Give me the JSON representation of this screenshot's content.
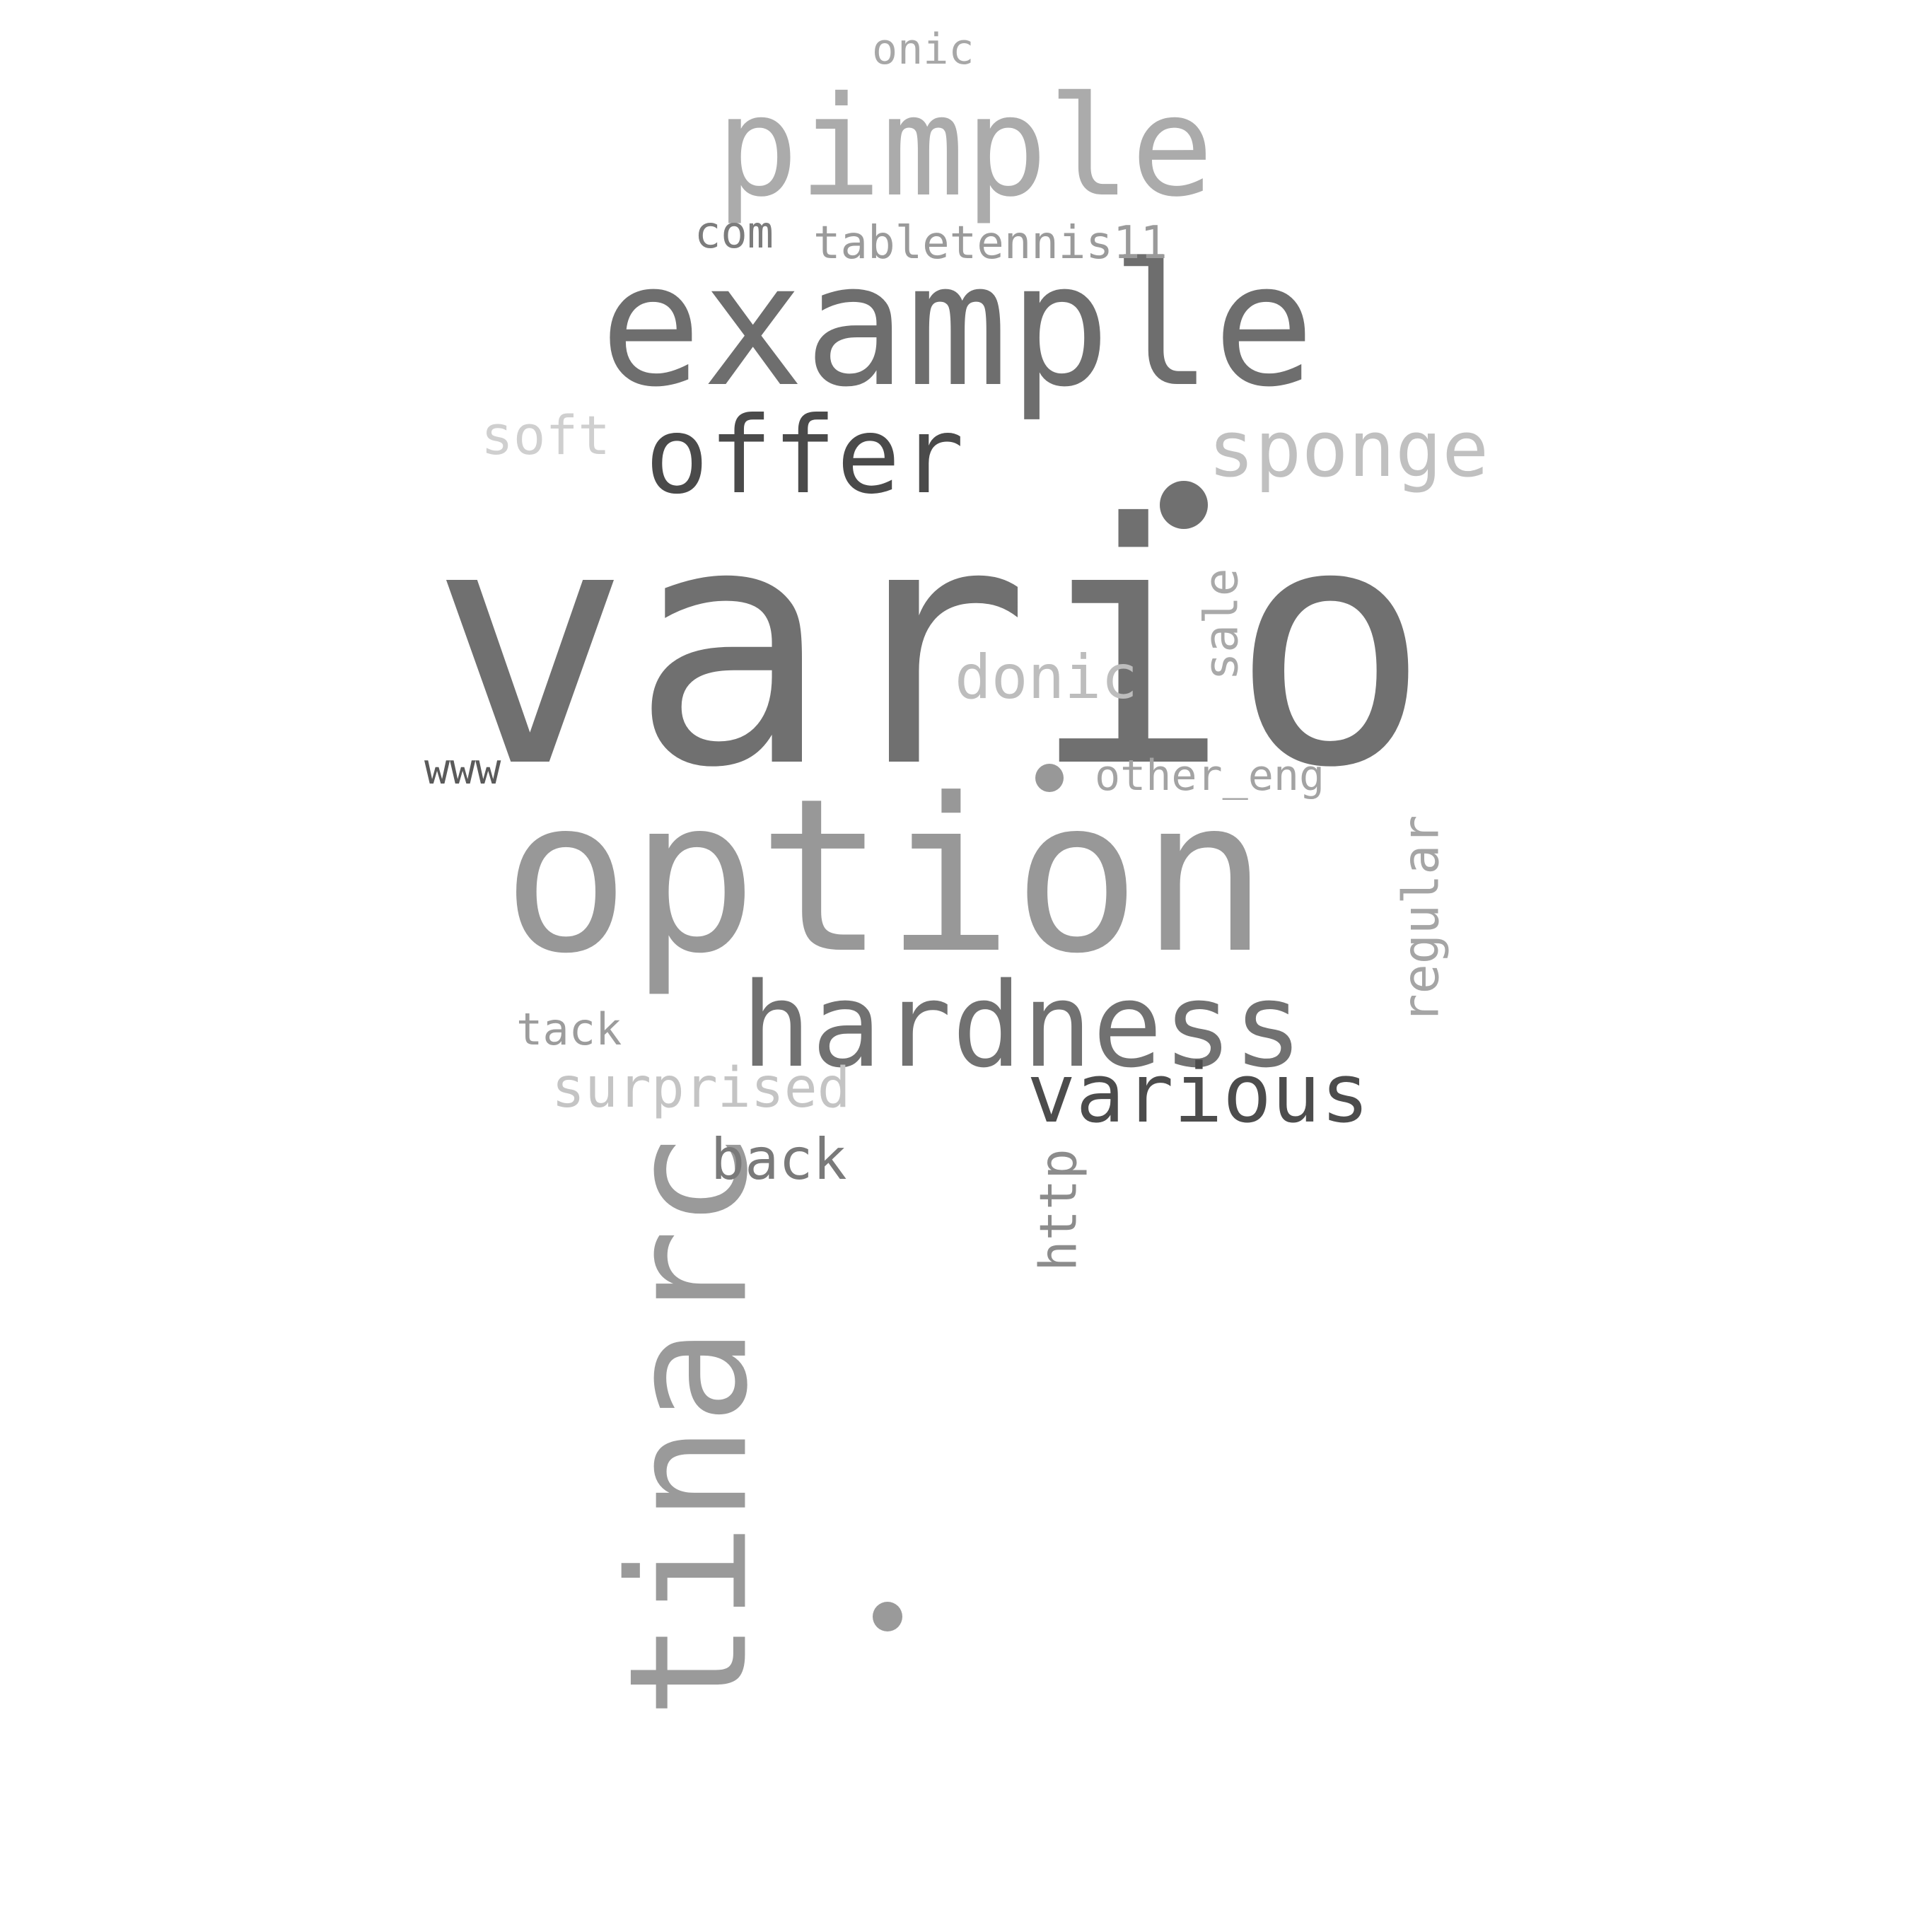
{
  "cloud": {
    "words": {
      "vario": {
        "text": "vario",
        "color": "#707070"
      },
      "option": {
        "text": "option",
        "color": "#989898"
      },
      "example": {
        "text": "example",
        "color": "#6e6e6e"
      },
      "tinarc": {
        "text": "tinarc",
        "color": "#9a9a9a"
      },
      "pimple": {
        "text": "pimple",
        "color": "#ababab"
      },
      "hardness": {
        "text": "hardness",
        "color": "#717171"
      },
      "offer": {
        "text": "offer",
        "color": "#4a4a4a"
      },
      "sponge": {
        "text": "sponge",
        "color": "#c0c0c0"
      },
      "various": {
        "text": "various",
        "color": "#4c4c4c"
      },
      "donic": {
        "text": "donic",
        "color": "#bdbdbd"
      },
      "surprised": {
        "text": "surprised",
        "color": "#c4c4c4"
      },
      "back": {
        "text": "back",
        "color": "#7a7a7a"
      },
      "regular": {
        "text": "regular",
        "color": "#a5a5a5"
      },
      "sale": {
        "text": "sale",
        "color": "#a9a9a9"
      },
      "soft": {
        "text": "soft",
        "color": "#cfcfcf"
      },
      "http": {
        "text": "http",
        "color": "#8c8c8c"
      },
      "tabletennis": {
        "text": "tabletennis11",
        "color": "#9a9a9a"
      },
      "tack": {
        "text": "tack",
        "color": "#9c9c9c"
      },
      "com": {
        "text": "com",
        "color": "#7c7c7c"
      },
      "www": {
        "text": "www",
        "color": "#5a5a5a"
      },
      "othereng": {
        "text": "other_eng",
        "color": "#a3a3a3"
      },
      "onic": {
        "text": "onic",
        "color": "#a7a7a7"
      }
    }
  }
}
